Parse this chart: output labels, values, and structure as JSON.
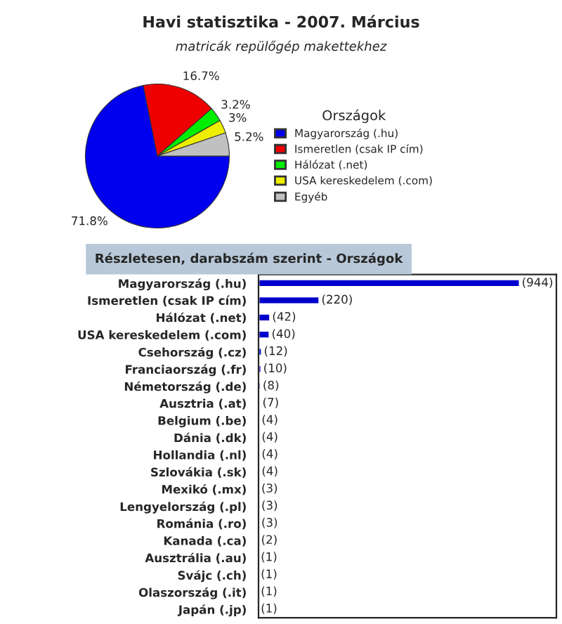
{
  "chart_data": [
    {
      "type": "pie",
      "title": "Havi statisztika - 2007. Március",
      "subtitle": "matricák repülőgép makettekhez",
      "legend_title": "Országok",
      "categories": [
        "Magyarország (.hu)",
        "Ismeretlen (csak IP cím)",
        "Hálózat (.net)",
        "USA kereskedelem (.com)",
        "Egyéb"
      ],
      "values": [
        71.8,
        16.7,
        3.2,
        3,
        5.2
      ],
      "value_labels": [
        "71.8%",
        "16.7%",
        "3.2%",
        "3%",
        "5.2%"
      ],
      "colors": [
        "#0000ee",
        "#ee0000",
        "#00ee00",
        "#eeee00",
        "#c0c0c0"
      ],
      "legend": "right"
    },
    {
      "type": "bar",
      "orientation": "horizontal",
      "title": "Részletesen, darabszám szerint - Országok",
      "categories": [
        "Magyarország (.hu)",
        "Ismeretlen (csak IP cím)",
        "Hálózat (.net)",
        "USA kereskedelem (.com)",
        "Csehország (.cz)",
        "Franciaország (.fr)",
        "Németország (.de)",
        "Ausztria (.at)",
        "Belgium (.be)",
        "Dánia (.dk)",
        "Hollandia (.nl)",
        "Szlovákia (.sk)",
        "Mexikó (.mx)",
        "Lengyelország (.pl)",
        "Románia (.ro)",
        "Kanada (.ca)",
        "Ausztrália (.au)",
        "Svájc (.ch)",
        "Olaszország (.it)",
        "Japán (.jp)"
      ],
      "values": [
        944,
        220,
        42,
        40,
        12,
        10,
        8,
        7,
        4,
        4,
        4,
        4,
        3,
        3,
        3,
        2,
        1,
        1,
        1,
        1
      ],
      "value_labels": [
        "(944)",
        "(220)",
        "(42)",
        "(40)",
        "(12)",
        "(10)",
        "(8)",
        "(7)",
        "(4)",
        "(4)",
        "(4)",
        "(4)",
        "(3)",
        "(3)",
        "(3)",
        "(2)",
        "(1)",
        "(1)",
        "(1)",
        "(1)"
      ],
      "color": "#0000cc",
      "tick_labels": "y",
      "grid": false
    }
  ]
}
